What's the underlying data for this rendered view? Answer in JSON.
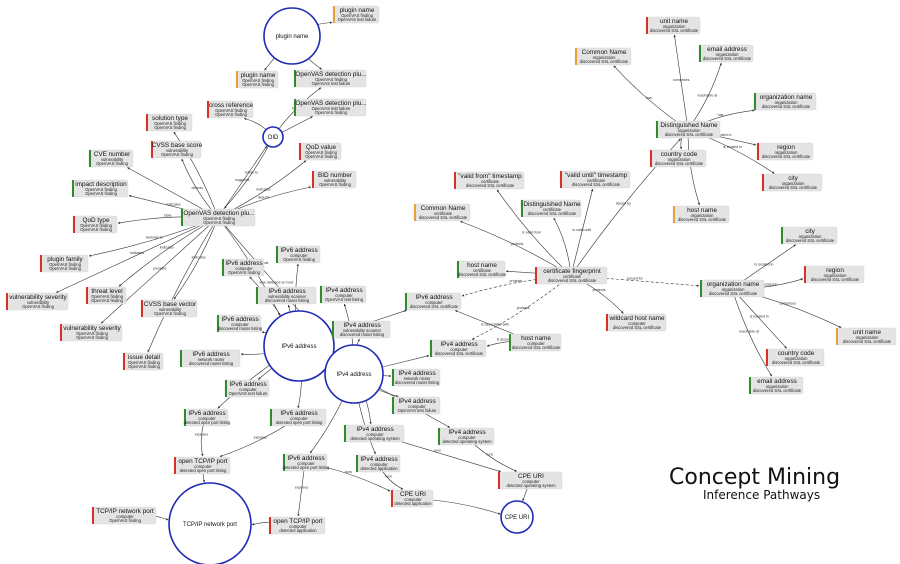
{
  "title": {
    "main": "Concept Mining",
    "sub": "Inference Pathways"
  },
  "colors": {
    "red": "#d9312a",
    "green": "#2e8b2e",
    "orange": "#e8a13a",
    "hub": "#1f2bb5"
  },
  "hubs": [
    {
      "id": "h_plugin",
      "label": "plugin name"
    },
    {
      "id": "h_oid",
      "label": "OID"
    },
    {
      "id": "h_ipv6",
      "label": "IPv6 address"
    },
    {
      "id": "h_ipv4",
      "label": "IPv4 address"
    },
    {
      "id": "h_tcp",
      "label": "TCP/IP network port"
    },
    {
      "id": "h_cpe",
      "label": "CPE URI"
    }
  ],
  "nodes": [
    {
      "id": "plugin_name_top",
      "title": "plugin name",
      "sub": [
        "OpenVAS finding",
        "OpenVAS test failure"
      ],
      "color": "orange"
    },
    {
      "id": "plugin_name_2",
      "title": "plugin name",
      "sub": [
        "OpenVAS finding",
        "OpenVAS finding"
      ],
      "color": "orange"
    },
    {
      "id": "ov_detect_1",
      "title": "OpenVAS detection plu...",
      "sub": [
        "OpenVAS finding",
        "OpenVAS test failure"
      ],
      "color": "green"
    },
    {
      "id": "ov_detect_2",
      "title": "OpenVAS detection plu...",
      "sub": [
        "OpenVAS test failure",
        "OpenVAS finding"
      ],
      "color": "green"
    },
    {
      "id": "cross_ref",
      "title": "cross reference",
      "sub": [
        "OpenVAS finding",
        "OpenVAS finding"
      ],
      "color": "red"
    },
    {
      "id": "solution_type",
      "title": "solution type",
      "sub": [
        "OpenVAS finding",
        "OpenVAS finding"
      ],
      "color": "red"
    },
    {
      "id": "cvss_score",
      "title": "CVSS base score",
      "sub": [
        "vulnerability",
        "OpenVAS finding"
      ],
      "color": "red"
    },
    {
      "id": "cve_number",
      "title": "CVE number",
      "sub": [
        "vulnerability",
        "OpenVAS finding"
      ],
      "color": "green"
    },
    {
      "id": "qod_value",
      "title": "QoD value",
      "sub": [
        "OpenVAS finding",
        "OpenVAS finding"
      ],
      "color": "red"
    },
    {
      "id": "bid_number",
      "title": "BID number",
      "sub": [
        "vulnerability",
        "OpenVAS finding"
      ],
      "color": "red"
    },
    {
      "id": "impact_desc",
      "title": "impact description",
      "sub": [
        "OpenVAS finding",
        "OpenVAS finding"
      ],
      "color": "green"
    },
    {
      "id": "ov_detect_main",
      "title": "OpenVAS detection plu...",
      "sub": [
        "OpenVAS finding",
        "OpenVAS finding"
      ],
      "color": "green"
    },
    {
      "id": "qod_type",
      "title": "QoD type",
      "sub": [
        "OpenVAS finding",
        "OpenVAS finding"
      ],
      "color": "red"
    },
    {
      "id": "plugin_family",
      "title": "plugin family",
      "sub": [
        "OpenVAS finding",
        "OpenVAS finding"
      ],
      "color": "red"
    },
    {
      "id": "vuln_sev_1",
      "title": "vulnerability severity",
      "sub": [
        "vulnerability",
        "OpenVAS finding"
      ],
      "color": "red"
    },
    {
      "id": "threat_level",
      "title": "threat level",
      "sub": [
        "OpenVAS finding",
        "OpenVAS finding"
      ],
      "color": "red"
    },
    {
      "id": "cvss_vector",
      "title": "CVSS base vector",
      "sub": [
        "vulnerability",
        "OpenVAS finding"
      ],
      "color": "red"
    },
    {
      "id": "vuln_sev_2",
      "title": "vulnerability severity",
      "sub": [
        "OpenVAS finding",
        "OpenVAS finding"
      ],
      "color": "red"
    },
    {
      "id": "issue_detail",
      "title": "issue detail",
      "sub": [
        "OpenVAS finding",
        "OpenVAS finding"
      ],
      "color": "red"
    },
    {
      "id": "ipv6_a",
      "title": "IPv6 address",
      "sub": [
        "computer",
        "OpenVAS finding"
      ],
      "color": "green"
    },
    {
      "id": "ipv6_b",
      "title": "IPv6 address",
      "sub": [
        "computer",
        "OpenVAS finding"
      ],
      "color": "green"
    },
    {
      "id": "ipv6_c",
      "title": "IPv6 address",
      "sub": [
        "vulnerability scanner",
        "discovered router listing"
      ],
      "color": "green"
    },
    {
      "id": "ipv4_a",
      "title": "IPv4 address",
      "sub": [
        "computer",
        "OpenVAS test listing"
      ],
      "color": "green"
    },
    {
      "id": "ipv6_d",
      "title": "IPv6 address",
      "sub": [
        "computer",
        "discovered router listing"
      ],
      "color": "green"
    },
    {
      "id": "ipv4_b",
      "title": "IPv4 address",
      "sub": [
        "vulnerability scanner",
        "discovered router listing"
      ],
      "color": "green"
    },
    {
      "id": "ipv6_e",
      "title": "IPv6 address",
      "sub": [
        "network router",
        "discovered router listing"
      ],
      "color": "green"
    },
    {
      "id": "ipv6_f",
      "title": "IPv6 address",
      "sub": [
        "computer",
        "OpenVAS test failure"
      ],
      "color": "green"
    },
    {
      "id": "ipv4_c",
      "title": "IPv4 address",
      "sub": [
        "network router",
        "discovered router listing"
      ],
      "color": "green"
    },
    {
      "id": "ipv4_d",
      "title": "IPv4 address",
      "sub": [
        "computer",
        "OpenVAS test failure"
      ],
      "color": "green"
    },
    {
      "id": "ipv6_g",
      "title": "IPv6 address",
      "sub": [
        "computer",
        "detected open port listing"
      ],
      "color": "green"
    },
    {
      "id": "ipv6_h",
      "title": "IPv6 address",
      "sub": [
        "computer",
        "detected open port listing"
      ],
      "color": "green"
    },
    {
      "id": "ipv4_e",
      "title": "IPv4 address",
      "sub": [
        "computer",
        "detected operating system"
      ],
      "color": "green"
    },
    {
      "id": "ipv4_f",
      "title": "IPv4 address",
      "sub": [
        "computer",
        "detected operating system"
      ],
      "color": "green"
    },
    {
      "id": "ipv6_i",
      "title": "IPv6 address",
      "sub": [
        "computer",
        "detected open port listing"
      ],
      "color": "green"
    },
    {
      "id": "ipv4_g",
      "title": "IPv4 address",
      "sub": [
        "computer",
        "detected application"
      ],
      "color": "green"
    },
    {
      "id": "open_tcp_1",
      "title": "open TCP/IP port",
      "sub": [
        "computer",
        "detected open port listing"
      ],
      "color": "red"
    },
    {
      "id": "open_tcp_2",
      "title": "open TCP/IP port",
      "sub": [
        "computer",
        "detected application"
      ],
      "color": "red"
    },
    {
      "id": "tcp_net_port",
      "title": "TCP/IP network port",
      "sub": [
        "computer",
        "OpenVAS finding"
      ],
      "color": "red"
    },
    {
      "id": "cpe_uri_1",
      "title": "CPE URI",
      "sub": [
        "computer",
        "detected application"
      ],
      "color": "red"
    },
    {
      "id": "cpe_uri_2",
      "title": "CPE URI",
      "sub": [
        "computer",
        "detected operating system"
      ],
      "color": "red"
    },
    {
      "id": "ipv6_ssl",
      "title": "IPv6 address",
      "sub": [
        "computer",
        "discovered SSL certificate"
      ],
      "color": "green"
    },
    {
      "id": "ipv4_ssl",
      "title": "IPv4 address",
      "sub": [
        "computer",
        "discovered SSL certificate"
      ],
      "color": "green"
    },
    {
      "id": "host_ssl",
      "title": "host name",
      "sub": [
        "computer",
        "discovered SSL certificate"
      ],
      "color": "green"
    },
    {
      "id": "wildcard_host",
      "title": "wildcard host name",
      "sub": [
        "computer",
        "discovered SSL certificate"
      ],
      "color": "red"
    },
    {
      "id": "host_cert",
      "title": "host name",
      "sub": [
        "certificate",
        "discovered SSL certificate"
      ],
      "color": "green"
    },
    {
      "id": "cert_fp",
      "title": "certificate fingerprint",
      "sub": [
        "certificate",
        "discovered SSL certificate"
      ],
      "color": "red"
    },
    {
      "id": "valid_from",
      "title": "\"valid from\" timestamp",
      "sub": [
        "certificate",
        "discovered SSL certificate"
      ],
      "color": "red"
    },
    {
      "id": "valid_until",
      "title": "\"valid until\" timestamp",
      "sub": [
        "certificate",
        "discovered SSL certificate"
      ],
      "color": "red"
    },
    {
      "id": "common_name_cert",
      "title": "Common Name",
      "sub": [
        "certificate",
        "discovered SSL certificate"
      ],
      "color": "orange"
    },
    {
      "id": "dn_cert",
      "title": "Distinguished Name",
      "sub": [
        "certificate",
        "discovered SSL certificate"
      ],
      "color": "green"
    },
    {
      "id": "host_org",
      "title": "host name",
      "sub": [
        "organization",
        "discovered SSL certificate"
      ],
      "color": "orange"
    },
    {
      "id": "dn_org",
      "title": "Distinguished Name",
      "sub": [
        "organization",
        "discovered SSL certificate"
      ],
      "color": "green"
    },
    {
      "id": "common_name_org",
      "title": "Common Name",
      "sub": [
        "organization",
        "discovered SSL certificate"
      ],
      "color": "orange"
    },
    {
      "id": "unit_name",
      "title": "unit name",
      "sub": [
        "organization",
        "discovered SSL certificate"
      ],
      "color": "red"
    },
    {
      "id": "email_1",
      "title": "email address",
      "sub": [
        "organization",
        "discovered SSL certificate"
      ],
      "color": "green"
    },
    {
      "id": "org_name_1",
      "title": "organization name",
      "sub": [
        "organization",
        "discovered SSL certificate"
      ],
      "color": "green"
    },
    {
      "id": "region_1",
      "title": "region",
      "sub": [
        "organization",
        "discovered SSL certificate"
      ],
      "color": "red"
    },
    {
      "id": "country_1",
      "title": "country code",
      "sub": [
        "organization",
        "discovered SSL certificate"
      ],
      "color": "red"
    },
    {
      "id": "city_1",
      "title": "city",
      "sub": [
        "organization",
        "discovered SSL certificate"
      ],
      "color": "red"
    },
    {
      "id": "org_name_2",
      "title": "organization name",
      "sub": [
        "organization",
        "discovered SSL certificate"
      ],
      "color": "green"
    },
    {
      "id": "city_2",
      "title": "city",
      "sub": [
        "organization",
        "discovered SSL certificate"
      ],
      "color": "green"
    },
    {
      "id": "region_2",
      "title": "region",
      "sub": [
        "organization",
        "discovered SSL certificate"
      ],
      "color": "red"
    },
    {
      "id": "unit_name_2",
      "title": "unit name",
      "sub": [
        "organization",
        "discovered SSL certificate"
      ],
      "color": "orange"
    },
    {
      "id": "country_2",
      "title": "country code",
      "sub": [
        "organization",
        "discovered SSL certificate"
      ],
      "color": "red"
    },
    {
      "id": "email_2",
      "title": "email address",
      "sub": [
        "organization",
        "discovered SSL certificate"
      ],
      "color": "green"
    }
  ],
  "edges": [
    {
      "from": "h_plugin",
      "to": "plugin_name_top",
      "label": "is version"
    },
    {
      "from": "h_plugin",
      "to": "plugin_name_2",
      "label": ""
    },
    {
      "from": "h_plugin",
      "to": "ov_detect_1",
      "label": ""
    },
    {
      "from": "h_oid",
      "to": "ov_detect_1",
      "label": "has"
    },
    {
      "from": "h_oid",
      "to": "ov_detect_2",
      "label": ""
    },
    {
      "from": "h_oid",
      "to": "cross_ref",
      "label": ""
    },
    {
      "from": "h_oid",
      "to": "ov_detect_main",
      "label": "refers to"
    },
    {
      "from": "ov_detect_main",
      "to": "h_oid",
      "label": "suggests"
    },
    {
      "from": "ov_detect_main",
      "to": "solution_type",
      "label": ""
    },
    {
      "from": "ov_detect_main",
      "to": "cvss_score",
      "label": "detects"
    },
    {
      "from": "ov_detect_main",
      "to": "cve_number",
      "label": ""
    },
    {
      "from": "ov_detect_main",
      "to": "qod_value",
      "label": "indicates"
    },
    {
      "from": "ov_detect_main",
      "to": "bid_number",
      "label": "detects"
    },
    {
      "from": "ov_detect_main",
      "to": "impact_desc",
      "label": "indicates"
    },
    {
      "from": "ov_detect_main",
      "to": "qod_type",
      "label": "state"
    },
    {
      "from": "ov_detect_main",
      "to": "plugin_family",
      "label": "belongs to"
    },
    {
      "from": "ov_detect_main",
      "to": "vuln_sev_1",
      "label": "indicates"
    },
    {
      "from": "ov_detect_main",
      "to": "threat_level",
      "label": "indicates"
    },
    {
      "from": "ov_detect_main",
      "to": "cvss_vector",
      "label": "indicates"
    },
    {
      "from": "ov_detect_main",
      "to": "vuln_sev_2",
      "label": "provides"
    },
    {
      "from": "ov_detect_main",
      "to": "issue_detail",
      "label": ""
    },
    {
      "from": "ov_detect_main",
      "to": "h_ipv6",
      "label": "was detected on host"
    },
    {
      "from": "ov_detect_main",
      "to": "h_ipv4",
      "label": "was detected on host"
    },
    {
      "from": "h_ipv6",
      "to": "ipv6_a",
      "label": ""
    },
    {
      "from": "h_ipv6",
      "to": "ipv6_b",
      "label": ""
    },
    {
      "from": "h_ipv6",
      "to": "ipv6_c",
      "label": ""
    },
    {
      "from": "h_ipv6",
      "to": "ipv6_d",
      "label": ""
    },
    {
      "from": "h_ipv6",
      "to": "ipv6_e",
      "label": ""
    },
    {
      "from": "h_ipv6",
      "to": "ipv6_f",
      "label": ""
    },
    {
      "from": "h_ipv6",
      "to": "ipv6_g",
      "label": ""
    },
    {
      "from": "h_ipv6",
      "to": "ipv6_h",
      "label": ""
    },
    {
      "from": "h_ipv6",
      "to": "ipv6_ssl",
      "label": ""
    },
    {
      "from": "h_ipv4",
      "to": "ipv4_a",
      "label": ""
    },
    {
      "from": "h_ipv4",
      "to": "ipv4_b",
      "label": ""
    },
    {
      "from": "h_ipv4",
      "to": "ipv4_c",
      "label": ""
    },
    {
      "from": "h_ipv4",
      "to": "ipv4_d",
      "label": ""
    },
    {
      "from": "h_ipv4",
      "to": "ipv4_e",
      "label": ""
    },
    {
      "from": "h_ipv4",
      "to": "ipv4_f",
      "label": ""
    },
    {
      "from": "h_ipv4",
      "to": "ipv4_g",
      "label": ""
    },
    {
      "from": "h_ipv4",
      "to": "ipv6_i",
      "label": ""
    },
    {
      "from": "h_ipv4",
      "to": "ipv4_ssl",
      "label": ""
    },
    {
      "from": "ipv6_g",
      "to": "open_tcp_1",
      "label": "exposes"
    },
    {
      "from": "ipv6_h",
      "to": "open_tcp_1",
      "label": "exposes"
    },
    {
      "from": "open_tcp_1",
      "to": "h_tcp",
      "label": ""
    },
    {
      "from": "open_tcp_2",
      "to": "h_tcp",
      "label": ""
    },
    {
      "from": "tcp_net_port",
      "to": "h_tcp",
      "label": ""
    },
    {
      "from": "ipv6_i",
      "to": "open_tcp_2",
      "label": "exposes"
    },
    {
      "from": "ipv4_g",
      "to": "cpe_uri_1",
      "label": "runs"
    },
    {
      "from": "ipv6_i",
      "to": "cpe_uri_1",
      "label": "runs"
    },
    {
      "from": "ipv4_e",
      "to": "cpe_uri_2",
      "label": "runs"
    },
    {
      "from": "ipv4_f",
      "to": "cpe_uri_2",
      "label": "runs"
    },
    {
      "from": "cpe_uri_1",
      "to": "h_cpe",
      "label": ""
    },
    {
      "from": "cpe_uri_2",
      "to": "h_cpe",
      "label": ""
    },
    {
      "from": "cert_fp",
      "to": "ipv6_ssl",
      "label": "protects",
      "dash": true
    },
    {
      "from": "cert_fp",
      "to": "ipv4_ssl",
      "label": "protects",
      "dash": true
    },
    {
      "from": "host_ssl",
      "to": "ipv6_ssl",
      "label": "is associated with"
    },
    {
      "from": "host_ssl",
      "to": "ipv4_ssl",
      "label": "is associated with"
    },
    {
      "from": "cert_fp",
      "to": "wildcard_host",
      "label": "protects"
    },
    {
      "from": "cert_fp",
      "to": "host_cert",
      "label": ""
    },
    {
      "from": "cert_fp",
      "to": "common_name_cert",
      "label": "protects"
    },
    {
      "from": "cert_fp",
      "to": "valid_from",
      "label": "is valid from"
    },
    {
      "from": "cert_fp",
      "to": "valid_until",
      "label": "is valid until"
    },
    {
      "from": "cert_fp",
      "to": "dn_cert",
      "label": ""
    },
    {
      "from": "cert_fp",
      "to": "dn_org",
      "label": "issued by"
    },
    {
      "from": "cert_fp",
      "to": "org_name_2",
      "label": "issued for",
      "dash": true
    },
    {
      "from": "dn_org",
      "to": "host_org",
      "label": "has"
    },
    {
      "from": "dn_org",
      "to": "common_name_org",
      "label": "has"
    },
    {
      "from": "dn_org",
      "to": "unit_name",
      "label": "comprises"
    },
    {
      "from": "dn_org",
      "to": "email_1",
      "label": "reachable at"
    },
    {
      "from": "dn_org",
      "to": "org_name_1",
      "label": "has"
    },
    {
      "from": "dn_org",
      "to": "region_1",
      "label": "is located in"
    },
    {
      "from": "dn_org",
      "to": "country_1",
      "label": "is located in"
    },
    {
      "from": "dn_org",
      "to": "city_1",
      "label": "is located in"
    },
    {
      "from": "org_name_2",
      "to": "city_2",
      "label": "is located in"
    },
    {
      "from": "org_name_2",
      "to": "region_2",
      "label": "is located in"
    },
    {
      "from": "org_name_2",
      "to": "unit_name_2",
      "label": "comprises"
    },
    {
      "from": "org_name_2",
      "to": "country_2",
      "label": "is located in"
    },
    {
      "from": "org_name_2",
      "to": "email_2",
      "label": "reachable at"
    }
  ]
}
